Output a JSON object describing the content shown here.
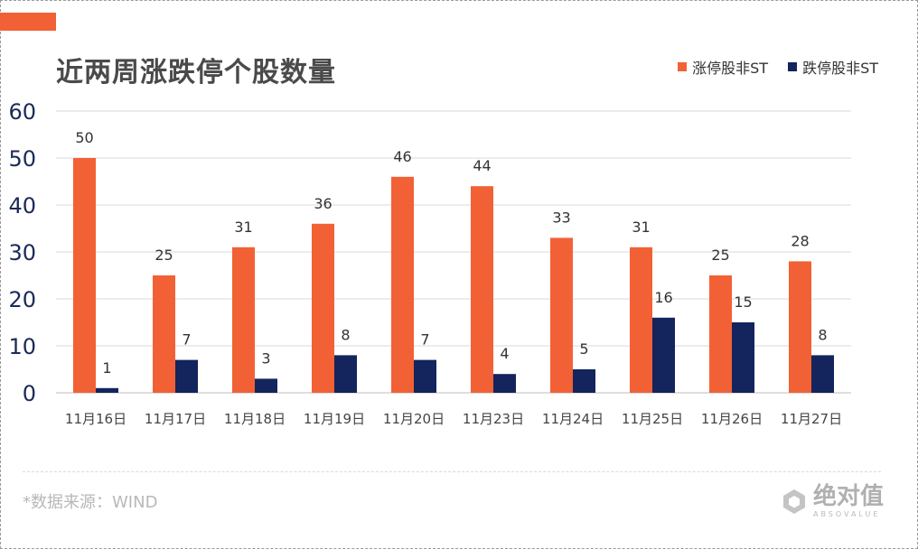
{
  "title": "近两周涨跌停个股数量",
  "legend": {
    "items": [
      {
        "label": "涨停股非ST",
        "color": "#F26135"
      },
      {
        "label": "跌停股非ST",
        "color": "#14245C"
      }
    ]
  },
  "source": "*数据来源：WIND",
  "watermark": {
    "text": "绝对值",
    "sub": "ABSOVALUE",
    "icon": "cube-logo-icon"
  },
  "colors": {
    "accent": "#F26135",
    "dark_series": "#14245C"
  },
  "chart_data": {
    "type": "bar",
    "categories": [
      "11月16日",
      "11月17日",
      "11月18日",
      "11月19日",
      "11月20日",
      "11月23日",
      "11月24日",
      "11月25日",
      "11月26日",
      "11月27日"
    ],
    "series": [
      {
        "name": "涨停股非ST",
        "color": "#F26135",
        "values": [
          50,
          25,
          31,
          36,
          46,
          44,
          33,
          31,
          25,
          28
        ]
      },
      {
        "name": "跌停股非ST",
        "color": "#14245C",
        "values": [
          1,
          7,
          3,
          8,
          7,
          4,
          5,
          16,
          15,
          8
        ]
      }
    ],
    "ylim": [
      0,
      60
    ],
    "yticks": [
      0,
      10,
      20,
      30,
      40,
      50,
      60
    ],
    "grid": true,
    "legend_position": "top-right",
    "data_labels": true
  }
}
